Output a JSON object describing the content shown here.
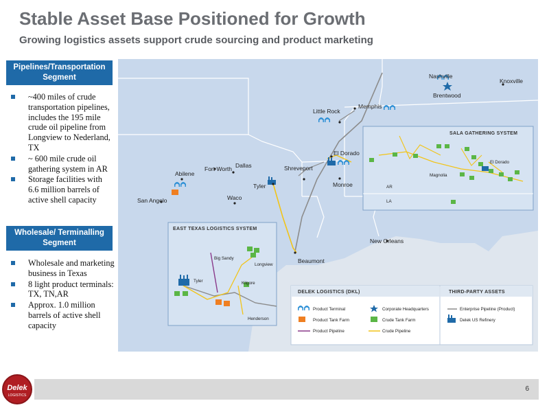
{
  "header": {
    "title": "Stable Asset Base Positioned for Growth",
    "subtitle": "Growing logistics assets support crude sourcing and product marketing"
  },
  "segments": [
    {
      "title": "Pipelines/Transportation Segment",
      "bullets": [
        "~400 miles of crude transportation pipelines, includes the 195 mile crude oil pipeline from Longview to Nederland, TX",
        "~ 600 mile crude oil gathering system in AR",
        "Storage facilities with 6.6 million barrels of active shell capacity"
      ]
    },
    {
      "title": "Wholesale/ Terminalling Segment",
      "bullets": [
        "Wholesale and marketing business in Texas",
        "8 light product terminals: TX, TN,AR",
        "Approx. 1.0 million barrels of active shell capacity"
      ]
    }
  ],
  "map": {
    "cities": {
      "nashville": "Nashville",
      "brentwood": "Brentwood",
      "knoxville": "Knoxville",
      "little_rock": "Little Rock",
      "memphis": "Memphis",
      "el_dorado": "El Dorado",
      "shreveport": "Shreveport",
      "monroe": "Monroe",
      "tyler": "Tyler",
      "dallas": "Dallas",
      "fort_worth": "Fort Worth",
      "abilene": "Abilene",
      "waco": "Waco",
      "san_angelo": "San Angelo",
      "beaumont": "Beaumont",
      "new_orleans": "New Orleans"
    },
    "sala": {
      "title": "SALA GATHERING SYSTEM",
      "el_dorado": "El Dorado",
      "magnolia": "Magnolia",
      "ar": "AR",
      "la": "LA"
    },
    "east_texas": {
      "title": "EAST TEXAS LOGISTICS SYSTEM",
      "big_sandy": "Big Sandy",
      "longview": "Longview",
      "tyler": "Tyler",
      "kilgore": "Kilgore",
      "henderson": "Henderson"
    },
    "legend": {
      "dkl_title": "DELEK LOGISTICS (DKL)",
      "third_title": "THIRD-PARTY ASSETS",
      "product_terminal": "Product Terminal",
      "corporate_hq": "Corporate Headquarters",
      "product_tank_farm": "Product Tank Farm",
      "crude_tank_farm": "Crude Tank Farm",
      "product_pipeline": "Product Pipeline",
      "crude_pipeline": "Crude Pipeline",
      "enterprise_pipeline": "Enterprise Pipeline (Product)",
      "delek_refinery": "Delek US Refinery"
    },
    "colors": {
      "land": "#c8d8ec",
      "water": "#dfe6ee",
      "terminal": "#2b8fd6",
      "product_tank": "#ef7f22",
      "crude_tank": "#5bb646",
      "product_pipeline": "#8a3a8a",
      "crude_pipeline": "#f2c418",
      "enterprise_pipeline": "#8c8c8c",
      "refinery": "#1f6aa8"
    }
  },
  "footer": {
    "page_number": "6",
    "logo_text": "Delek",
    "logo_subtext": "LOGISTICS"
  }
}
